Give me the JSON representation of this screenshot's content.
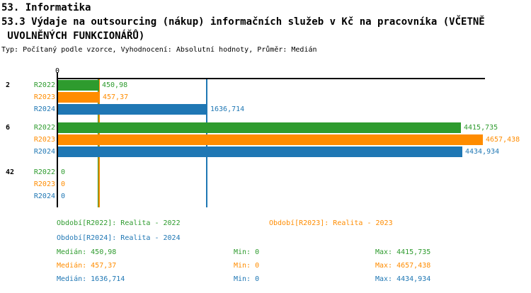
{
  "header": {
    "title_line1": "53. Informatika",
    "title_line2": "53.3 Výdaje na outsourcing (nákup) informačních služeb v Kč na pracovníka (VČETNĚ",
    "title_line3": " UVOLNĚNÝCH FUNKCIONÁŘŮ)",
    "meta_line": "Typ: Počítaný podle vzorce, Vyhodnocení: Absolutní hodnoty, Průměr: Medián"
  },
  "colors": {
    "R2022": "#2E9B2E",
    "R2023": "#FF8C00",
    "R2024": "#1F77B4",
    "axis": "#000000",
    "background": "#FFFFFF"
  },
  "chart_data": {
    "type": "bar",
    "orientation": "horizontal",
    "title": "53.3 Výdaje na outsourcing (nákup) informačních služeb v Kč na pracovníka (VČETNĚ UVOLNĚNÝCH FUNKCIONÁŘŮ)",
    "xlabel": "",
    "ylabel": "",
    "x_axis": {
      "zero_label": "0",
      "min": 0,
      "max": 4700,
      "gridlines": false
    },
    "series": [
      "R2022",
      "R2023",
      "R2024"
    ],
    "groups": [
      {
        "category": "2",
        "bars": [
          {
            "series": "R2022",
            "value": 450.98,
            "label": "450,98"
          },
          {
            "series": "R2023",
            "value": 457.37,
            "label": "457,37"
          },
          {
            "series": "R2024",
            "value": 1636.714,
            "label": "1636,714"
          }
        ]
      },
      {
        "category": "6",
        "bars": [
          {
            "series": "R2022",
            "value": 4415.735,
            "label": "4415,735"
          },
          {
            "series": "R2023",
            "value": 4657.438,
            "label": "4657,438"
          },
          {
            "series": "R2024",
            "value": 4434.934,
            "label": "4434,934"
          }
        ]
      },
      {
        "category": "42",
        "bars": [
          {
            "series": "R2022",
            "value": 0,
            "label": "0"
          },
          {
            "series": "R2023",
            "value": 0,
            "label": "0"
          },
          {
            "series": "R2024",
            "value": 0,
            "label": "0"
          }
        ]
      }
    ],
    "median_lines": [
      {
        "series": "R2022",
        "value": 450.98
      },
      {
        "series": "R2023",
        "value": 457.37
      },
      {
        "series": "R2024",
        "value": 1636.714
      }
    ]
  },
  "legend": {
    "r2022": "Období[R2022]: Realita - 2022",
    "r2023": "Období[R2023]: Realita - 2023",
    "r2024": "Období[R2024]: Realita - 2024"
  },
  "stats": {
    "rows": [
      {
        "series": "R2022",
        "median_label": "Medián: 450,98",
        "min_label": "Min: 0",
        "max_label": "Max: 4415,735"
      },
      {
        "series": "R2023",
        "median_label": "Medián: 457,37",
        "min_label": "Min: 0",
        "max_label": "Max: 4657,438"
      },
      {
        "series": "R2024",
        "median_label": "Medián: 1636,714",
        "min_label": "Min: 0",
        "max_label": "Max: 4434,934"
      }
    ]
  }
}
